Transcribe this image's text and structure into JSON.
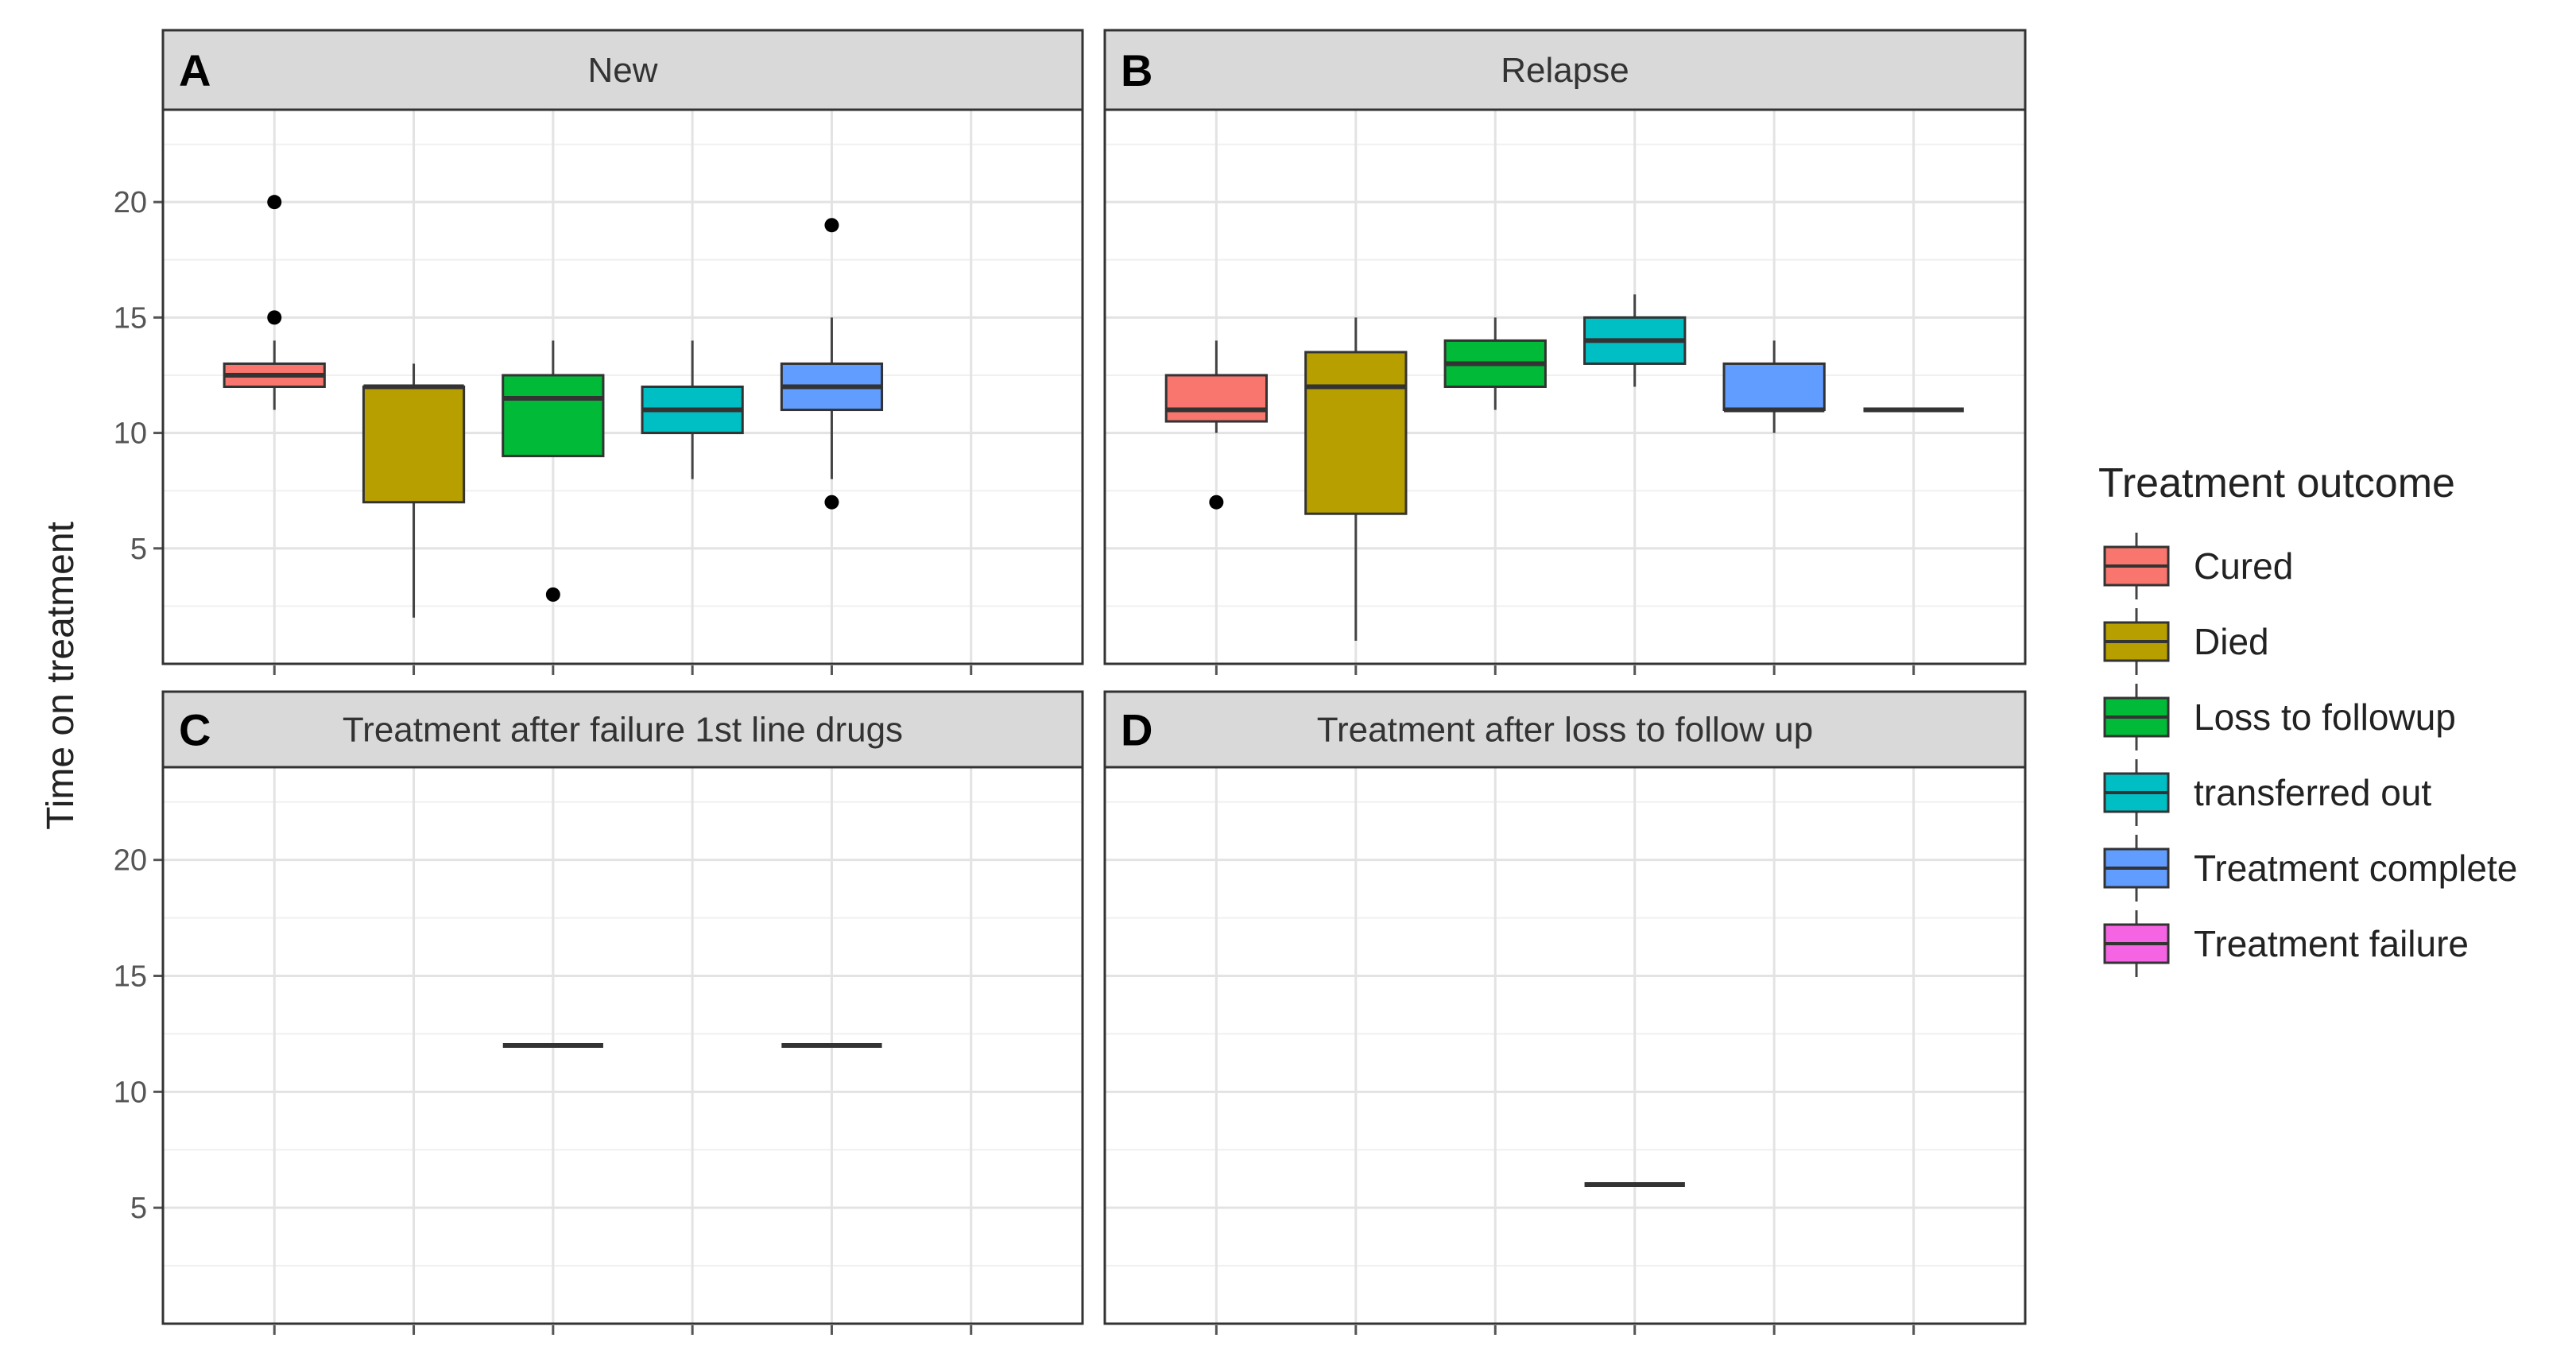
{
  "chart_data": {
    "type": "box",
    "title": "",
    "ylabel": "Time on treatment",
    "xlabel": "",
    "ylim": [
      0,
      24
    ],
    "yticks": [
      5,
      10,
      15,
      20
    ],
    "grid": true,
    "legend": {
      "title": "Treatment  outcome",
      "position": "right",
      "entries": [
        {
          "label": "Cured",
          "color": "#F8766D"
        },
        {
          "label": "Died",
          "color": "#B79F00"
        },
        {
          "label": "Loss to followup",
          "color": "#00BA38"
        },
        {
          "label": "transferred out",
          "color": "#00BFC4"
        },
        {
          "label": "Treatment complete",
          "color": "#619CFF"
        },
        {
          "label": "Treatment failure",
          "color": "#F564E3"
        }
      ]
    },
    "categories": [
      "Cured",
      "Died",
      "Loss to followup",
      "transferred out",
      "Treatment complete",
      "Treatment failure"
    ],
    "panels": [
      {
        "letter": "A",
        "title": "New",
        "boxes": [
          {
            "category": "Cured",
            "q1": 12,
            "median": 12.5,
            "q3": 13,
            "whisker_low": 11,
            "whisker_high": 14,
            "outliers": [
              15,
              20
            ]
          },
          {
            "category": "Died",
            "q1": 7,
            "median": 12,
            "q3": 12,
            "whisker_low": 2,
            "whisker_high": 13,
            "outliers": []
          },
          {
            "category": "Loss to followup",
            "q1": 9,
            "median": 11.5,
            "q3": 12.5,
            "whisker_low": 9,
            "whisker_high": 14,
            "outliers": [
              3
            ]
          },
          {
            "category": "transferred out",
            "q1": 10,
            "median": 11,
            "q3": 12,
            "whisker_low": 8,
            "whisker_high": 14,
            "outliers": []
          },
          {
            "category": "Treatment complete",
            "q1": 11,
            "median": 12,
            "q3": 13,
            "whisker_low": 8,
            "whisker_high": 15,
            "outliers": [
              7,
              19
            ]
          }
        ]
      },
      {
        "letter": "B",
        "title": "Relapse",
        "boxes": [
          {
            "category": "Cured",
            "q1": 10.5,
            "median": 11,
            "q3": 12.5,
            "whisker_low": 10,
            "whisker_high": 14,
            "outliers": [
              7
            ]
          },
          {
            "category": "Died",
            "q1": 6.5,
            "median": 12,
            "q3": 13.5,
            "whisker_low": 1,
            "whisker_high": 15,
            "outliers": []
          },
          {
            "category": "Loss to followup",
            "q1": 12,
            "median": 13,
            "q3": 14,
            "whisker_low": 11,
            "whisker_high": 15,
            "outliers": []
          },
          {
            "category": "transferred out",
            "q1": 13,
            "median": 14,
            "q3": 15,
            "whisker_low": 12,
            "whisker_high": 16,
            "outliers": []
          },
          {
            "category": "Treatment complete",
            "q1": 11,
            "median": 11,
            "q3": 13,
            "whisker_low": 10,
            "whisker_high": 14,
            "outliers": []
          },
          {
            "category": "Treatment failure",
            "q1": 11,
            "median": 11,
            "q3": 11,
            "whisker_low": 11,
            "whisker_high": 11,
            "outliers": []
          }
        ]
      },
      {
        "letter": "C",
        "title": "Treatment after failure 1st line drugs",
        "boxes": [
          {
            "category": "Loss to followup",
            "q1": 12,
            "median": 12,
            "q3": 12,
            "whisker_low": 12,
            "whisker_high": 12,
            "outliers": []
          },
          {
            "category": "Treatment complete",
            "q1": 12,
            "median": 12,
            "q3": 12,
            "whisker_low": 12,
            "whisker_high": 12,
            "outliers": []
          }
        ]
      },
      {
        "letter": "D",
        "title": "Treatment after loss to follow up",
        "boxes": [
          {
            "category": "transferred out",
            "q1": 6,
            "median": 6,
            "q3": 6,
            "whisker_low": 6,
            "whisker_high": 6,
            "outliers": []
          }
        ]
      }
    ]
  }
}
